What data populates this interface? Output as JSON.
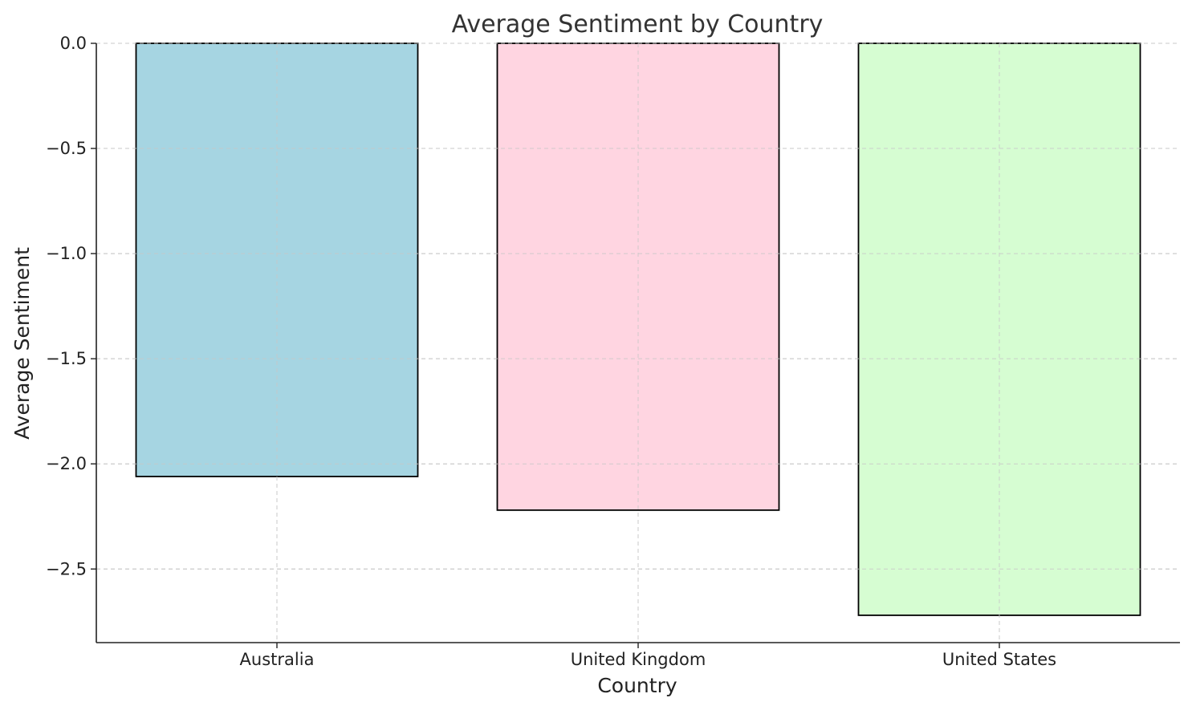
{
  "chart_data": {
    "type": "bar",
    "title": "Average Sentiment by Country",
    "xlabel": "Country",
    "ylabel": "Average Sentiment",
    "categories": [
      "Australia",
      "United Kingdom",
      "United States"
    ],
    "values": [
      -2.06,
      -2.22,
      -2.72
    ],
    "colors": [
      "#a6d5e2",
      "#ffd5e1",
      "#d6fdd2"
    ],
    "ylim": [
      -2.85,
      0.0
    ],
    "yticks": [
      0.0,
      -0.5,
      -1.0,
      -1.5,
      -2.0,
      -2.5
    ],
    "ytick_labels": [
      "0.0",
      "−0.5",
      "−1.0",
      "−1.5",
      "−2.0",
      "−2.5"
    ],
    "grid": true
  }
}
